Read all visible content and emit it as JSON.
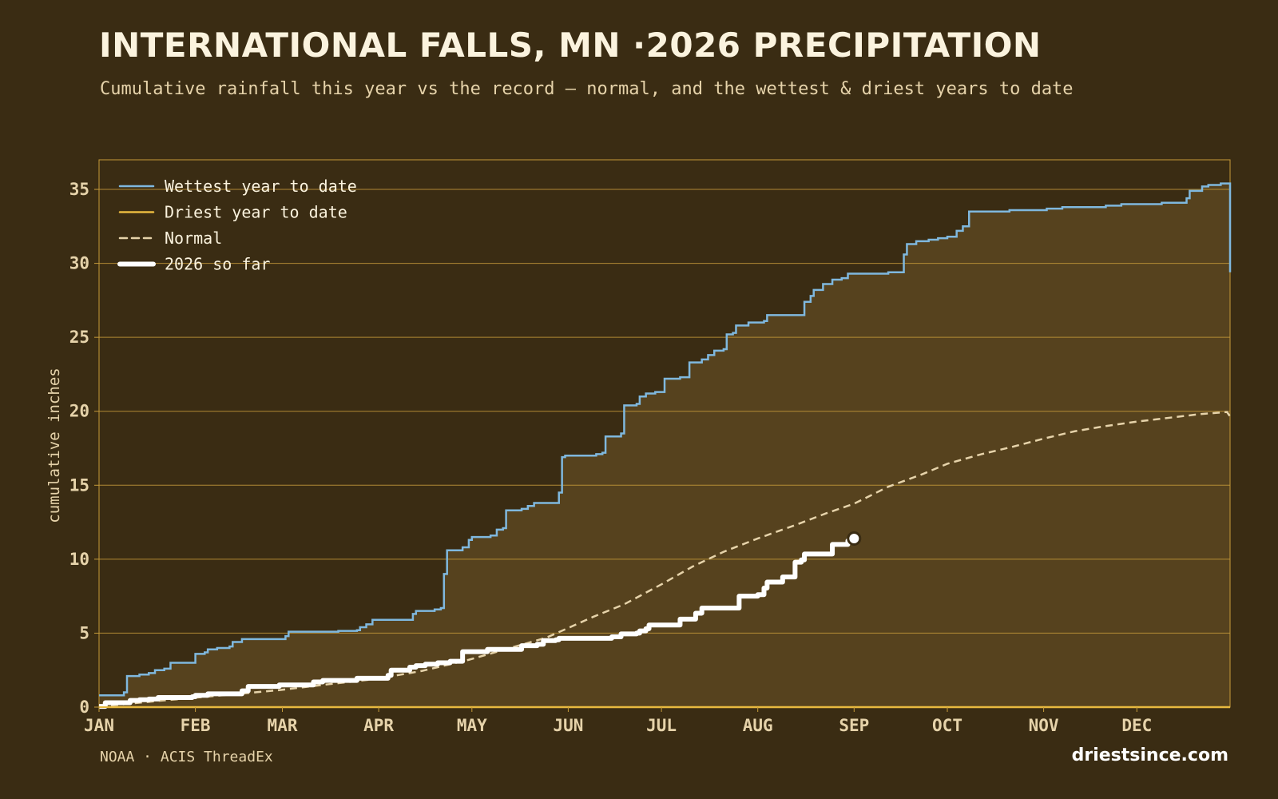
{
  "header": {
    "title": "INTERNATIONAL FALLS, MN ·2026 PRECIPITATION",
    "subtitle": "Cumulative rainfall this year vs the record — normal, and the wettest & driest years to date"
  },
  "footer": {
    "source": "NOAA · ACIS ThreadEx",
    "brand": "driestsince.com"
  },
  "colors": {
    "background": "#3a2c13",
    "fill_band": "#56421e",
    "wettest": "#7fb8de",
    "driest": "#e8b93f",
    "normal": "#e6d3aa",
    "current": "#ffffff",
    "grid": "#c59a3a",
    "text": "#e6d3aa"
  },
  "chart_data": {
    "type": "line",
    "title": "INTERNATIONAL FALLS, MN ·2026 PRECIPITATION",
    "ylabel": "cumulative inches",
    "xlabel": "",
    "xlim": [
      1,
      365
    ],
    "ylim": [
      0,
      37
    ],
    "yticks": [
      0,
      5,
      10,
      15,
      20,
      25,
      30,
      35
    ],
    "xticks": [
      {
        "label": "JAN",
        "day": 1
      },
      {
        "label": "FEB",
        "day": 32
      },
      {
        "label": "MAR",
        "day": 60
      },
      {
        "label": "APR",
        "day": 91
      },
      {
        "label": "MAY",
        "day": 121
      },
      {
        "label": "JUN",
        "day": 152
      },
      {
        "label": "JUL",
        "day": 182
      },
      {
        "label": "AUG",
        "day": 213
      },
      {
        "label": "SEP",
        "day": 244
      },
      {
        "label": "OCT",
        "day": 274
      },
      {
        "label": "NOV",
        "day": 305
      },
      {
        "label": "DEC",
        "day": 335
      }
    ],
    "grid": "horizontal",
    "legend_position": "top-left",
    "series": [
      {
        "name": "Wettest year to date",
        "key": "wettest",
        "style": "step",
        "points": [
          [
            1,
            0.8
          ],
          [
            8,
            0.8
          ],
          [
            9,
            1.0
          ],
          [
            10,
            2.1
          ],
          [
            14,
            2.2
          ],
          [
            17,
            2.3
          ],
          [
            19,
            2.5
          ],
          [
            22,
            2.6
          ],
          [
            24,
            3.0
          ],
          [
            31,
            3.0
          ],
          [
            32,
            3.6
          ],
          [
            35,
            3.7
          ],
          [
            36,
            3.9
          ],
          [
            39,
            4.0
          ],
          [
            43,
            4.1
          ],
          [
            44,
            4.4
          ],
          [
            47,
            4.6
          ],
          [
            57,
            4.6
          ],
          [
            61,
            4.8
          ],
          [
            62,
            5.1
          ],
          [
            73,
            5.1
          ],
          [
            78,
            5.15
          ],
          [
            84,
            5.2
          ],
          [
            85,
            5.4
          ],
          [
            87,
            5.6
          ],
          [
            89,
            5.9
          ],
          [
            100,
            5.9
          ],
          [
            102,
            6.3
          ],
          [
            103,
            6.5
          ],
          [
            109,
            6.6
          ],
          [
            111,
            6.7
          ],
          [
            112,
            9.0
          ],
          [
            113,
            10.6
          ],
          [
            118,
            10.8
          ],
          [
            120,
            11.3
          ],
          [
            121,
            11.5
          ],
          [
            127,
            11.6
          ],
          [
            129,
            12.0
          ],
          [
            131,
            12.1
          ],
          [
            132,
            13.3
          ],
          [
            137,
            13.4
          ],
          [
            139,
            13.6
          ],
          [
            141,
            13.8
          ],
          [
            148,
            13.8
          ],
          [
            149,
            14.5
          ],
          [
            150,
            16.9
          ],
          [
            151,
            17.0
          ],
          [
            161,
            17.1
          ],
          [
            163,
            17.2
          ],
          [
            164,
            18.3
          ],
          [
            169,
            18.5
          ],
          [
            170,
            20.4
          ],
          [
            174,
            20.5
          ],
          [
            175,
            21.0
          ],
          [
            177,
            21.2
          ],
          [
            180,
            21.3
          ],
          [
            183,
            22.2
          ],
          [
            188,
            22.3
          ],
          [
            191,
            23.3
          ],
          [
            195,
            23.5
          ],
          [
            197,
            23.8
          ],
          [
            199,
            24.1
          ],
          [
            202,
            24.2
          ],
          [
            203,
            25.2
          ],
          [
            205,
            25.3
          ],
          [
            206,
            25.8
          ],
          [
            210,
            26.0
          ],
          [
            215,
            26.1
          ],
          [
            216,
            26.5
          ],
          [
            227,
            26.5
          ],
          [
            228,
            27.4
          ],
          [
            230,
            27.8
          ],
          [
            231,
            28.2
          ],
          [
            234,
            28.6
          ],
          [
            237,
            28.9
          ],
          [
            240,
            29.0
          ],
          [
            242,
            29.3
          ],
          [
            250,
            29.3
          ],
          [
            255,
            29.4
          ],
          [
            259,
            29.4
          ],
          [
            260,
            30.6
          ],
          [
            261,
            31.3
          ],
          [
            264,
            31.5
          ],
          [
            268,
            31.6
          ],
          [
            271,
            31.7
          ],
          [
            274,
            31.8
          ],
          [
            277,
            32.2
          ],
          [
            279,
            32.5
          ],
          [
            281,
            33.5
          ],
          [
            291,
            33.5
          ],
          [
            294,
            33.6
          ],
          [
            303,
            33.6
          ],
          [
            306,
            33.7
          ],
          [
            311,
            33.8
          ],
          [
            322,
            33.8
          ],
          [
            325,
            33.9
          ],
          [
            330,
            34.0
          ],
          [
            341,
            34.0
          ],
          [
            343,
            34.1
          ],
          [
            349,
            34.1
          ],
          [
            351,
            34.4
          ],
          [
            352,
            34.9
          ],
          [
            356,
            35.2
          ],
          [
            358,
            35.3
          ],
          [
            362,
            35.4
          ],
          [
            365,
            35.4
          ],
          [
            365,
            29.4
          ]
        ]
      },
      {
        "name": "Driest year to date",
        "key": "driest",
        "style": "step",
        "points": [
          [
            1,
            0.0
          ],
          [
            365,
            0.0
          ]
        ]
      },
      {
        "name": "Normal",
        "key": "normal",
        "style": "dashed",
        "points": [
          [
            1,
            0.02
          ],
          [
            10,
            0.22
          ],
          [
            20,
            0.42
          ],
          [
            31,
            0.62
          ],
          [
            45,
            0.88
          ],
          [
            59,
            1.15
          ],
          [
            75,
            1.55
          ],
          [
            90,
            1.9
          ],
          [
            105,
            2.45
          ],
          [
            120,
            3.2
          ],
          [
            135,
            4.1
          ],
          [
            145,
            4.7
          ],
          [
            152,
            5.35
          ],
          [
            160,
            6.1
          ],
          [
            170,
            6.95
          ],
          [
            182,
            8.3
          ],
          [
            192,
            9.5
          ],
          [
            202,
            10.5
          ],
          [
            213,
            11.4
          ],
          [
            225,
            12.3
          ],
          [
            235,
            13.1
          ],
          [
            244,
            13.75
          ],
          [
            255,
            14.9
          ],
          [
            266,
            15.75
          ],
          [
            274,
            16.45
          ],
          [
            285,
            17.1
          ],
          [
            295,
            17.6
          ],
          [
            305,
            18.15
          ],
          [
            315,
            18.65
          ],
          [
            325,
            19.0
          ],
          [
            335,
            19.3
          ],
          [
            345,
            19.55
          ],
          [
            355,
            19.8
          ],
          [
            364,
            19.95
          ],
          [
            365,
            19.65
          ]
        ]
      },
      {
        "name": "2026 so far",
        "key": "current",
        "style": "step",
        "points": [
          [
            1,
            0.05
          ],
          [
            3,
            0.3
          ],
          [
            10,
            0.3
          ],
          [
            11,
            0.45
          ],
          [
            14,
            0.5
          ],
          [
            17,
            0.55
          ],
          [
            20,
            0.65
          ],
          [
            31,
            0.7
          ],
          [
            32,
            0.8
          ],
          [
            36,
            0.9
          ],
          [
            45,
            0.9
          ],
          [
            47,
            1.1
          ],
          [
            49,
            1.4
          ],
          [
            57,
            1.4
          ],
          [
            59,
            1.5
          ],
          [
            68,
            1.5
          ],
          [
            70,
            1.7
          ],
          [
            73,
            1.8
          ],
          [
            81,
            1.8
          ],
          [
            84,
            1.95
          ],
          [
            93,
            1.95
          ],
          [
            94,
            2.15
          ],
          [
            95,
            2.5
          ],
          [
            99,
            2.5
          ],
          [
            101,
            2.7
          ],
          [
            103,
            2.8
          ],
          [
            106,
            2.9
          ],
          [
            110,
            3.0
          ],
          [
            114,
            3.1
          ],
          [
            116,
            3.1
          ],
          [
            118,
            3.75
          ],
          [
            124,
            3.75
          ],
          [
            126,
            3.9
          ],
          [
            135,
            3.9
          ],
          [
            137,
            4.15
          ],
          [
            142,
            4.25
          ],
          [
            144,
            4.5
          ],
          [
            148,
            4.55
          ],
          [
            149,
            4.65
          ],
          [
            164,
            4.65
          ],
          [
            166,
            4.75
          ],
          [
            169,
            4.95
          ],
          [
            174,
            5.0
          ],
          [
            175,
            5.15
          ],
          [
            177,
            5.3
          ],
          [
            178,
            5.55
          ],
          [
            187,
            5.55
          ],
          [
            188,
            5.95
          ],
          [
            192,
            5.95
          ],
          [
            193,
            6.35
          ],
          [
            195,
            6.7
          ],
          [
            206,
            6.7
          ],
          [
            207,
            7.5
          ],
          [
            213,
            7.6
          ],
          [
            215,
            8.05
          ],
          [
            216,
            8.45
          ],
          [
            220,
            8.45
          ],
          [
            221,
            8.8
          ],
          [
            224,
            8.8
          ],
          [
            225,
            9.8
          ],
          [
            227,
            9.95
          ],
          [
            228,
            10.35
          ],
          [
            236,
            10.35
          ],
          [
            237,
            11.0
          ],
          [
            241,
            11.0
          ],
          [
            242,
            11.25
          ],
          [
            243,
            11.4
          ]
        ]
      }
    ],
    "current_marker": {
      "day": 244,
      "value": 11.4
    }
  }
}
